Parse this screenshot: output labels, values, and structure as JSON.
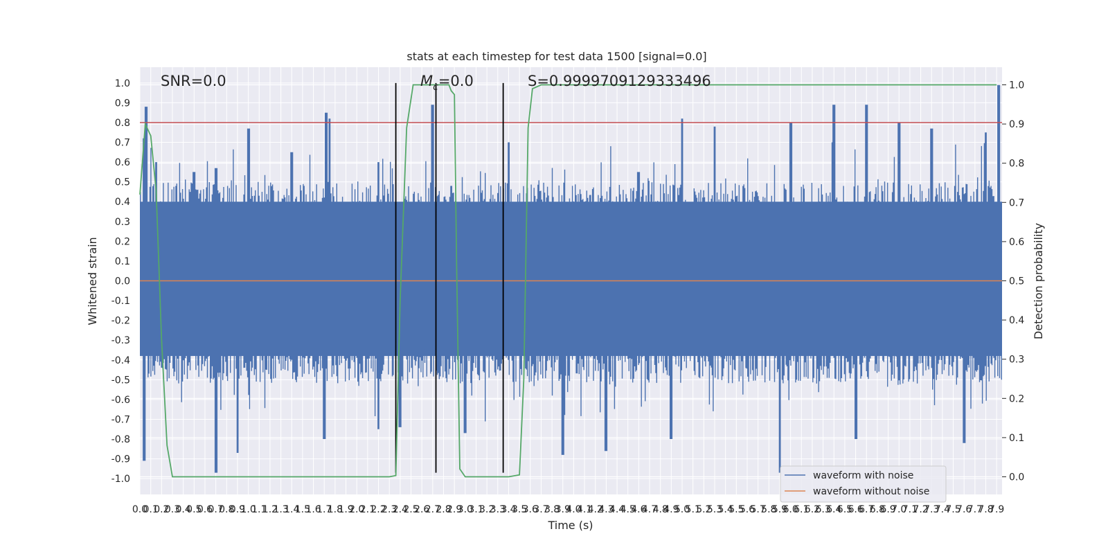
{
  "chart_data": {
    "type": "line",
    "title": "stats at each timestep for test data 1500 [signal=0.0]",
    "xlabel": "Time (s)",
    "ylabel": "Whitened strain",
    "y2label": "Detection probability",
    "xlim": [
      0.0,
      7.95
    ],
    "ylim": [
      -1.08,
      1.08
    ],
    "y2lim": [
      -0.045,
      1.045
    ],
    "grid": true,
    "x_ticks": [
      0.0,
      0.1,
      0.2,
      0.3,
      0.4,
      0.5,
      0.6,
      0.7,
      0.8,
      0.9,
      1.0,
      1.1,
      1.2,
      1.3,
      1.4,
      1.5,
      1.6,
      1.7,
      1.8,
      1.9,
      2.0,
      2.1,
      2.2,
      2.3,
      2.4,
      2.5,
      2.6,
      2.7,
      2.8,
      2.9,
      3.0,
      3.1,
      3.2,
      3.3,
      3.4,
      3.5,
      3.6,
      3.7,
      3.8,
      3.9,
      4.0,
      4.1,
      4.2,
      4.3,
      4.4,
      4.5,
      4.6,
      4.7,
      4.8,
      4.9,
      5.0,
      5.1,
      5.2,
      5.3,
      5.4,
      5.5,
      5.6,
      5.7,
      5.8,
      5.9,
      6.0,
      6.1,
      6.2,
      6.3,
      6.4,
      6.5,
      6.6,
      6.7,
      6.8,
      6.9,
      7.0,
      7.1,
      7.2,
      7.3,
      7.4,
      7.5,
      7.6,
      7.7,
      7.8,
      7.9
    ],
    "y_ticks": [
      -1.0,
      -0.9,
      -0.8,
      -0.7,
      -0.6,
      -0.5,
      -0.4,
      -0.3,
      -0.2,
      -0.1,
      0.0,
      0.1,
      0.2,
      0.3,
      0.4,
      0.5,
      0.6,
      0.7,
      0.8,
      0.9,
      1.0
    ],
    "y2_ticks": [
      0.0,
      0.1,
      0.2,
      0.3,
      0.4,
      0.5,
      0.6,
      0.7,
      0.8,
      0.9,
      1.0
    ],
    "annotations": {
      "snr": "SNR=0.0",
      "mc_symbol": "M",
      "mc_sub": "c",
      "mc_value": "=0.0",
      "s": "S=0.9999709129333496"
    },
    "legend": {
      "placement": "lower-right",
      "entries": [
        "waveform with noise",
        "waveform without noise"
      ]
    },
    "colors": {
      "noise": "#4c72b0",
      "clean": "#dd8452",
      "probability": "#55a868",
      "threshold": "#c44e52",
      "marker": "#000000",
      "background": "#eaeaf2"
    },
    "series": [
      {
        "name": "waveform with noise",
        "axis": "left",
        "envelope_note": "dense noise, amplitude roughly within ±0.4 with spikes up to ±0.97",
        "upper_peaks": [
          [
            0.04,
            0.72
          ],
          [
            0.06,
            0.88
          ],
          [
            0.15,
            0.6
          ],
          [
            0.5,
            0.55
          ],
          [
            0.7,
            0.57
          ],
          [
            1.0,
            0.77
          ],
          [
            1.4,
            0.65
          ],
          [
            1.72,
            0.85
          ],
          [
            1.75,
            0.82
          ],
          [
            2.2,
            0.6
          ],
          [
            2.7,
            0.89
          ],
          [
            3.4,
            0.7
          ],
          [
            4.6,
            0.55
          ],
          [
            5.0,
            0.82
          ],
          [
            5.3,
            0.78
          ],
          [
            6.0,
            0.8
          ],
          [
            6.4,
            0.89
          ],
          [
            6.7,
            0.89
          ],
          [
            7.0,
            0.8
          ],
          [
            7.3,
            0.77
          ],
          [
            7.8,
            0.75
          ],
          [
            7.92,
            0.99
          ]
        ],
        "lower_peaks": [
          [
            0.04,
            -0.91
          ],
          [
            0.7,
            -0.97
          ],
          [
            0.9,
            -0.87
          ],
          [
            1.7,
            -0.8
          ],
          [
            2.2,
            -0.75
          ],
          [
            2.4,
            -0.74
          ],
          [
            3.0,
            -0.77
          ],
          [
            3.9,
            -0.88
          ],
          [
            4.3,
            -0.86
          ],
          [
            4.9,
            -0.8
          ],
          [
            5.9,
            -0.97
          ],
          [
            6.6,
            -0.8
          ],
          [
            7.6,
            -0.82
          ]
        ]
      },
      {
        "name": "waveform without noise",
        "axis": "left",
        "constant": 0.0
      },
      {
        "axis": "right",
        "x": [
          0.0,
          0.05,
          0.1,
          0.15,
          0.2,
          0.25,
          0.3,
          0.5,
          1.0,
          2.0,
          2.3,
          2.36,
          2.4,
          2.46,
          2.52,
          2.6,
          2.8,
          2.85,
          2.87,
          2.9,
          2.92,
          2.95,
          3.0,
          3.2,
          3.4,
          3.5,
          3.54,
          3.58,
          3.62,
          3.7,
          4.0,
          7.9
        ],
        "y": [
          0.72,
          0.9,
          0.87,
          0.73,
          0.35,
          0.08,
          0.0,
          0.0,
          0.0,
          0.0,
          0.0,
          0.003,
          0.45,
          0.89,
          1.0,
          1.0,
          1.0,
          1.0,
          0.985,
          0.975,
          0.55,
          0.02,
          0.0,
          0.0,
          0.0,
          0.005,
          0.25,
          0.89,
          0.99,
          1.0,
          1.0,
          1.0
        ]
      },
      {
        "axis": "left",
        "constant": 0.8
      }
    ],
    "vertical_markers": [
      2.36,
      2.73,
      3.35
    ]
  }
}
